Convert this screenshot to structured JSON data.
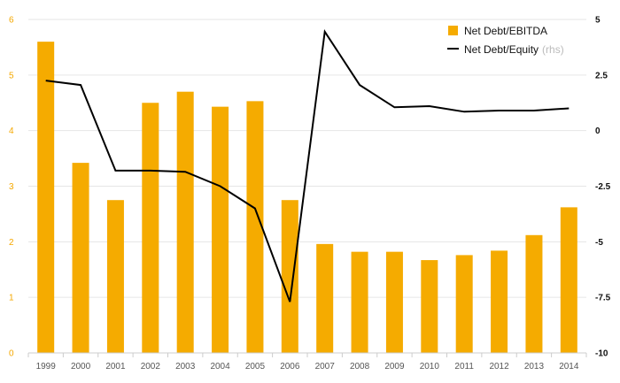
{
  "chart_data": {
    "type": "bar",
    "title": "",
    "categories": [
      "1999",
      "2000",
      "2001",
      "2002",
      "2003",
      "2004",
      "2005",
      "2006",
      "2007",
      "2008",
      "2009",
      "2010",
      "2011",
      "2012",
      "2013",
      "2014"
    ],
    "series": [
      {
        "name": "Net Debt/EBITDA",
        "type": "bar",
        "axis": "left",
        "color": "#f5ab00",
        "values": [
          5.6,
          3.42,
          2.75,
          4.5,
          4.7,
          4.43,
          4.53,
          2.75,
          1.96,
          1.82,
          1.82,
          1.67,
          1.76,
          1.84,
          2.12,
          2.62
        ]
      },
      {
        "name": "Net Debt/Equity",
        "note": "(rhs)",
        "type": "line",
        "axis": "right",
        "color": "#000000",
        "values": [
          2.25,
          2.05,
          -1.8,
          -1.8,
          -1.85,
          -2.5,
          -3.5,
          -7.7,
          4.45,
          2.05,
          1.05,
          1.1,
          0.85,
          0.9,
          0.9,
          1.0
        ]
      }
    ],
    "y_left": {
      "min": 0,
      "max": 6,
      "ticks": [
        "0",
        "1",
        "2",
        "3",
        "4",
        "5",
        "6"
      ]
    },
    "y_right": {
      "min": -10,
      "max": 5,
      "ticks": [
        "-10",
        "-7.5",
        "-5",
        "-2.5",
        "0",
        "2.5",
        "5"
      ]
    },
    "grid": true,
    "legend_position": "top-right"
  }
}
